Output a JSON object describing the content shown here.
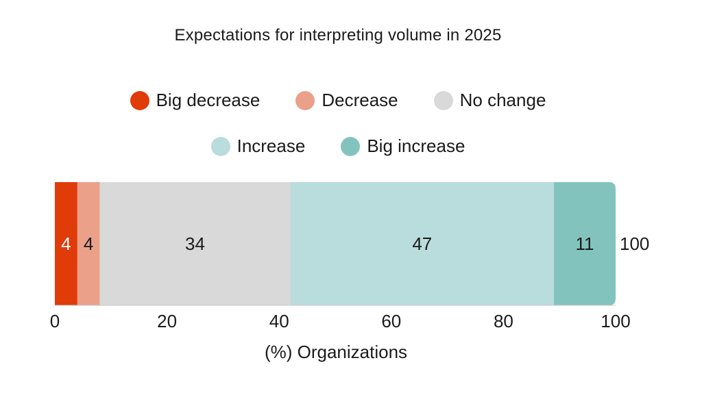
{
  "chart_data": {
    "type": "bar",
    "orientation": "horizontal",
    "stacked": true,
    "title": "Expectations for interpreting volume in 2025",
    "xlabel": "(%) Organizations",
    "xlim": [
      0,
      100
    ],
    "xticks": [
      0,
      20,
      40,
      60,
      80,
      100
    ],
    "legend_position": "top",
    "grid": false,
    "series": [
      {
        "name": "Big decrease",
        "value": 4,
        "color": "#e03c0a",
        "label_color": "#ffffff"
      },
      {
        "name": "Decrease",
        "value": 4,
        "color": "#eba08a",
        "label_color": "#1a1a1a"
      },
      {
        "name": "No change",
        "value": 34,
        "color": "#d9d9d9",
        "label_color": "#1a1a1a"
      },
      {
        "name": "Increase",
        "value": 47,
        "color": "#b9dcdc",
        "label_color": "#1a1a1a"
      },
      {
        "name": "Big increase",
        "value": 11,
        "color": "#82c4bd",
        "label_color": "#1a1a1a"
      }
    ],
    "total_label": "100"
  }
}
